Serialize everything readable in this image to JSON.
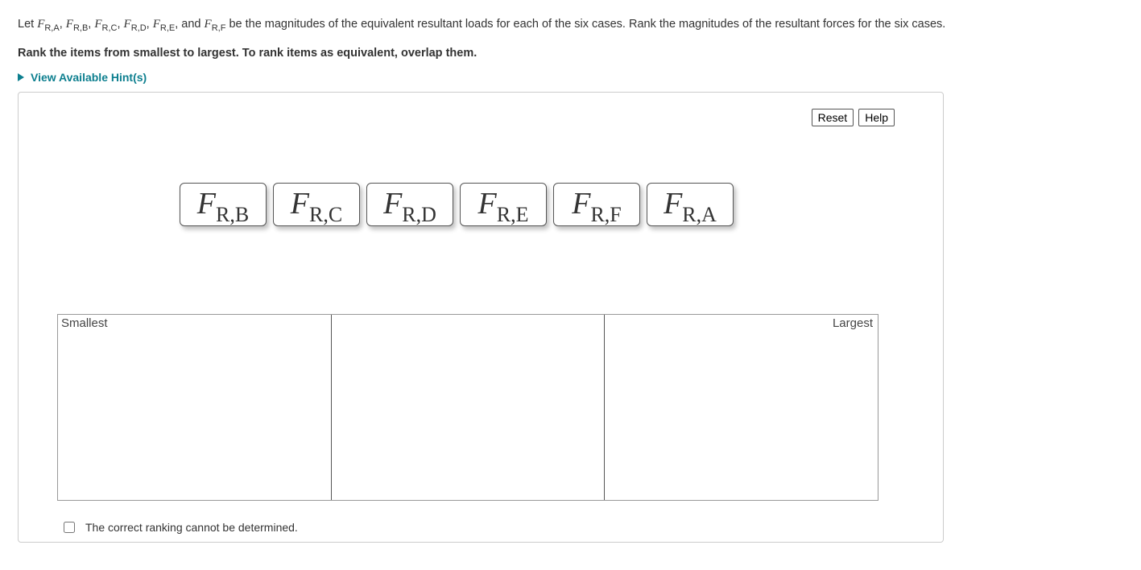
{
  "intro": {
    "prefix": "Let ",
    "vars": [
      "F_{R,A}",
      "F_{R,B}",
      "F_{R,C}",
      "F_{R,D}",
      "F_{R,E}",
      "F_{R,F}"
    ],
    "separators": [
      ", ",
      ", ",
      ", ",
      ", ",
      ", and "
    ],
    "suffix": " be the magnitudes of the equivalent resultant loads for each of the six cases. Rank the magnitudes of the resultant forces for the six cases."
  },
  "instruction": "Rank the items from smallest to largest. To rank items as equivalent, overlap them.",
  "hints_label": "View Available Hint(s)",
  "buttons": {
    "reset": "Reset",
    "help": "Help"
  },
  "tiles": [
    {
      "main": "F",
      "sub": "R,B"
    },
    {
      "main": "F",
      "sub": "R,C"
    },
    {
      "main": "F",
      "sub": "R,D"
    },
    {
      "main": "F",
      "sub": "R,E"
    },
    {
      "main": "F",
      "sub": "R,F"
    },
    {
      "main": "F",
      "sub": "R,A"
    }
  ],
  "ranking": {
    "smallest_label": "Smallest",
    "largest_label": "Largest",
    "num_columns": 3
  },
  "cannot_determine_label": "The correct ranking cannot be determined.",
  "colors": {
    "accent": "#0d7f8f",
    "border": "#ccc",
    "tile_border": "#555",
    "shadow": "rgba(0,0,0,0.25)"
  }
}
